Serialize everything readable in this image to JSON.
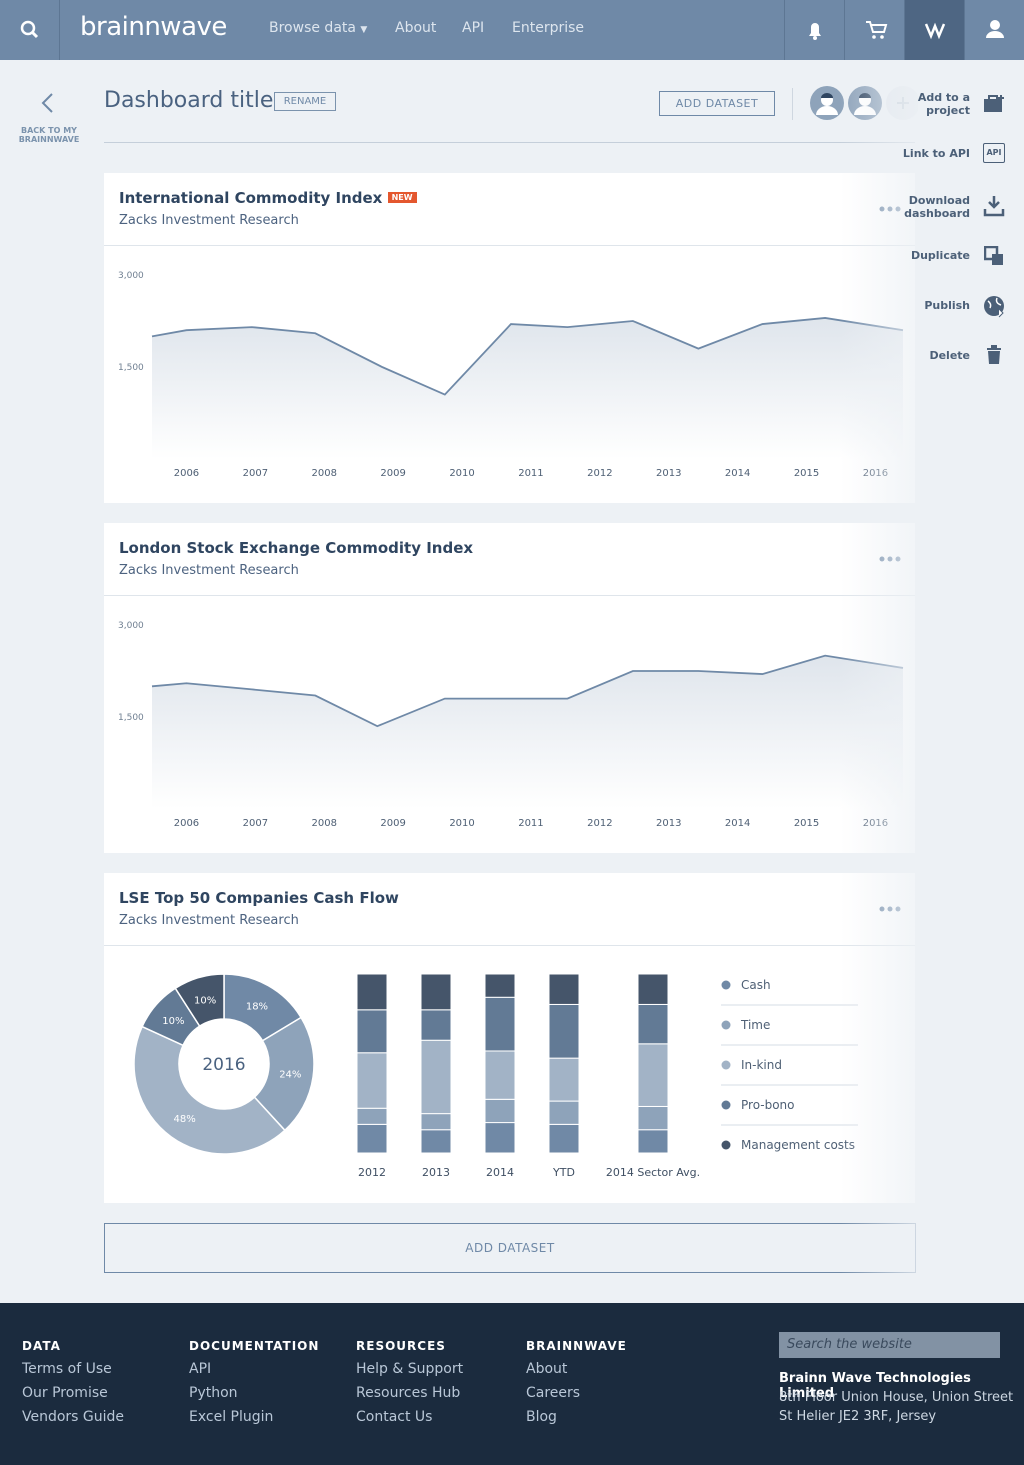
{
  "nav": {
    "logo": "brainnwave",
    "links": [
      "Browse data",
      "About",
      "API",
      "Enterprise"
    ]
  },
  "back": "BACK TO MY BRAINNWAVE",
  "header": {
    "title": "Dashboard title",
    "rename": "RENAME",
    "add_dataset": "ADD DATASET"
  },
  "actions": [
    "Add to a project",
    "Link to API",
    "Download dashboard",
    "Duplicate",
    "Publish",
    "Delete"
  ],
  "api_icon": "API",
  "cards": [
    {
      "title": "International Commodity Index",
      "badge": "NEW",
      "source": "Zacks Investment Research",
      "chart_data": {
        "type": "line",
        "x": [
          2005.5,
          2006,
          2006.95,
          2007.87,
          2008.84,
          2009.75,
          2010.71,
          2011.53,
          2012.48,
          2013.43,
          2014.36,
          2015.27,
          2016.4
        ],
        "series": [
          {
            "name": "International Commodity Index",
            "color": "#6f89a7",
            "values": [
              2000,
              2100,
              2150,
              2050,
              1500,
              1050,
              2200,
              2150,
              2250,
              1800,
              2200,
              2300,
              2100
            ]
          }
        ],
        "xlim": [
          2005.5,
          2016.4
        ],
        "xticks": [
          2006,
          2007,
          2008,
          2009,
          2010,
          2011,
          2012,
          2013,
          2014,
          2015,
          2016
        ],
        "ylim": [
          0,
          3000
        ],
        "yticks": [
          {
            "value": 1500,
            "label": "1,500"
          },
          {
            "value": 3000,
            "label": "3,000"
          }
        ]
      }
    },
    {
      "title": "London Stock Exchange Commodity Index",
      "source": "Zacks Investment Research",
      "chart_data": {
        "type": "line",
        "x": [
          2005.5,
          2006,
          2006.95,
          2007.87,
          2008.77,
          2009.75,
          2010.71,
          2011.53,
          2012.48,
          2013.43,
          2014.36,
          2015.27,
          2016.4
        ],
        "series": [
          {
            "name": "London Stock Exchange Commodity Index",
            "color": "#6f89a7",
            "values": [
              2000,
              2050,
              1950,
              1850,
              1350,
              1800,
              1800,
              1800,
              2250,
              2250,
              2200,
              2500,
              2300
            ]
          }
        ],
        "xlim": [
          2005.5,
          2016.4
        ],
        "xticks": [
          2006,
          2007,
          2008,
          2009,
          2010,
          2011,
          2012,
          2013,
          2014,
          2015,
          2016
        ],
        "ylim": [
          0,
          3000
        ],
        "yticks": [
          {
            "value": 1500,
            "label": "1,500"
          },
          {
            "value": 3000,
            "label": "3,000"
          }
        ]
      }
    },
    {
      "title": "LSE Top 50 Companies Cash Flow",
      "source": "Zacks Investment Research",
      "chart_data": [
        {
          "type": "pie",
          "center_label": "2016",
          "values": [
            18,
            24,
            48,
            10,
            10
          ],
          "value_labels": [
            "18%",
            "24%",
            "48%",
            "10%",
            "10%"
          ],
          "colors": [
            "#7089a6",
            "#8ea3ba",
            "#a2b3c6",
            "#627a95",
            "#45556a"
          ]
        },
        {
          "type": "bar",
          "stacked": true,
          "categories": [
            "2012",
            "2013",
            "2014",
            "YTD",
            "2014 Sector Avg."
          ],
          "ylim": [
            0,
            100
          ],
          "series": [
            {
              "name": "Cash",
              "color": "#7089a6",
              "values": [
                16,
                13,
                17,
                16,
                13
              ]
            },
            {
              "name": "Time",
              "color": "#8ea3ba",
              "values": [
                9,
                9,
                13,
                13,
                13
              ]
            },
            {
              "name": "In-kind",
              "color": "#a2b3c6",
              "values": [
                31,
                41,
                27,
                24,
                35
              ]
            },
            {
              "name": "Pro-bono",
              "color": "#627a95",
              "values": [
                24,
                17,
                30,
                30,
                22
              ]
            },
            {
              "name": "Management costs",
              "color": "#45556a",
              "values": [
                20,
                20,
                13,
                17,
                17
              ]
            }
          ]
        }
      ]
    }
  ],
  "add_dataset_bottom": "ADD DATASET",
  "footer": {
    "columns": [
      {
        "heading": "DATA",
        "links": [
          "Terms of Use",
          "Our Promise",
          "Vendors Guide"
        ]
      },
      {
        "heading": "DOCUMENTATION",
        "links": [
          "API",
          "Python",
          "Excel Plugin"
        ]
      },
      {
        "heading": "RESOURCES",
        "links": [
          "Help & Support",
          "Resources Hub",
          "Contact Us"
        ]
      },
      {
        "heading": "BRAINNWAVE",
        "links": [
          "About",
          "Careers",
          "Blog"
        ]
      }
    ],
    "search_placeholder": "Search the website",
    "company": "Brainn Wave Technologies Limited",
    "address": [
      "8th Floor Union House, Union Street",
      "St Helier JE2 3RF, Jersey"
    ]
  }
}
